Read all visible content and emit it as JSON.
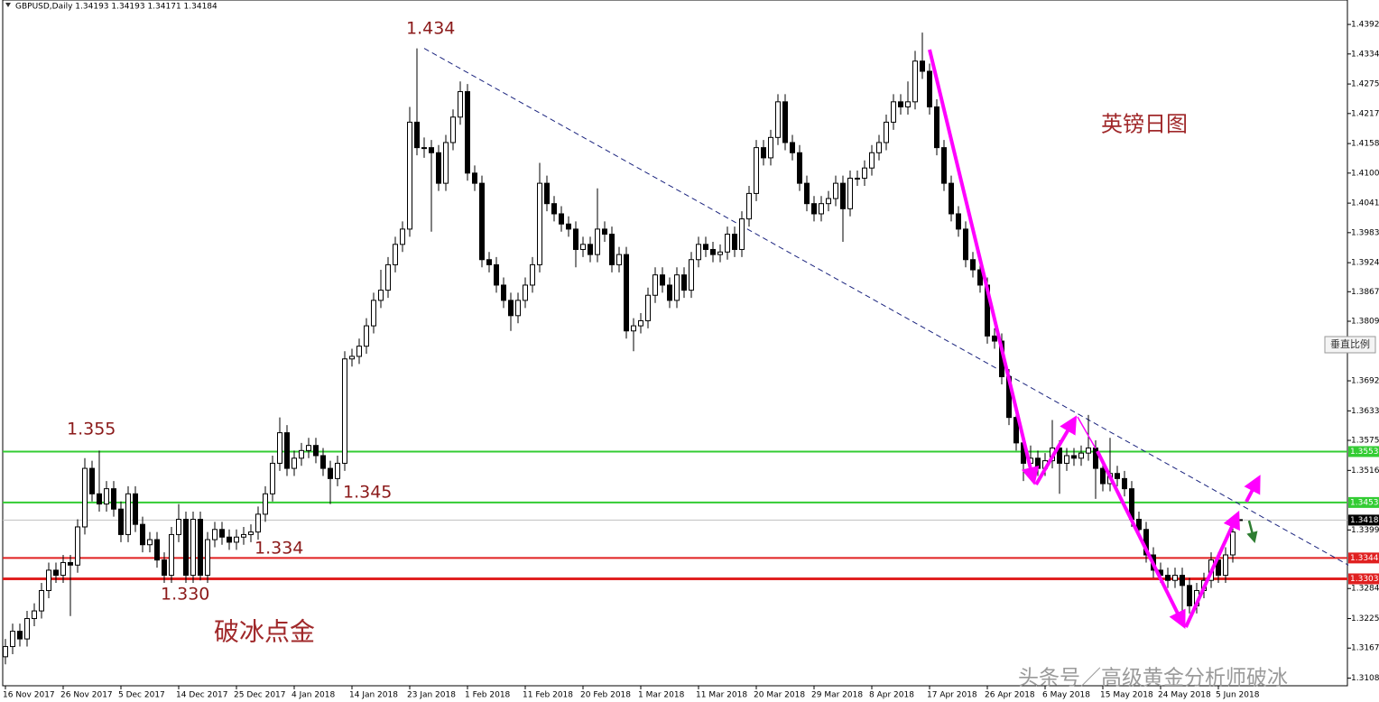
{
  "chart_data": {
    "type": "candlestick",
    "title": "GBPUSD,Daily  1.34193 1.34193 1.34171 1.34184",
    "categories": [
      "16 Nov 2017",
      null,
      null,
      null,
      null,
      null,
      null,
      null,
      "26 Nov 2017",
      null,
      null,
      null,
      null,
      null,
      null,
      null,
      "5 Dec 2017",
      null,
      null,
      null,
      null,
      null,
      null,
      null,
      "14 Dec 2017",
      null,
      null,
      null,
      null,
      null,
      null,
      null,
      "25 Dec 2017",
      null,
      null,
      null,
      null,
      null,
      null,
      null,
      "4 Jan 2018",
      null,
      null,
      null,
      null,
      null,
      null,
      null,
      "14 Jan 2018",
      null,
      null,
      null,
      null,
      null,
      null,
      null,
      "23 Jan 2018",
      null,
      null,
      null,
      null,
      null,
      null,
      null,
      "1 Feb 2018",
      null,
      null,
      null,
      null,
      null,
      null,
      null,
      "11 Feb 2018",
      null,
      null,
      null,
      null,
      null,
      null,
      null,
      "20 Feb 2018",
      null,
      null,
      null,
      null,
      null,
      null,
      null,
      "1 Mar 2018",
      null,
      null,
      null,
      null,
      null,
      null,
      null,
      "11 Mar 2018",
      null,
      null,
      null,
      null,
      null,
      null,
      null,
      "20 Mar 2018",
      null,
      null,
      null,
      null,
      null,
      null,
      null,
      "29 Mar 2018",
      null,
      null,
      null,
      null,
      null,
      null,
      null,
      "8 Apr 2018",
      null,
      null,
      null,
      null,
      null,
      null,
      null,
      "17 Apr 2018",
      null,
      null,
      null,
      null,
      null,
      null,
      null,
      "26 Apr 2018",
      null,
      null,
      null,
      null,
      null,
      null,
      null,
      "6 May 2018",
      null,
      null,
      null,
      null,
      null,
      null,
      null,
      "15 May 2018",
      null,
      null,
      null,
      null,
      null,
      null,
      null,
      "24 May 2018",
      null,
      null,
      null,
      null,
      null,
      null,
      null,
      "5 Jun 2018",
      null,
      null,
      null
    ],
    "ohlc": [
      [
        1.315,
        1.3185,
        1.3135,
        1.317
      ],
      [
        1.317,
        1.3215,
        1.3155,
        1.32
      ],
      [
        1.32,
        1.3215,
        1.317,
        1.3185
      ],
      [
        1.3185,
        1.324,
        1.317,
        1.3225
      ],
      [
        1.3225,
        1.3255,
        1.321,
        1.324
      ],
      [
        1.324,
        1.3295,
        1.3225,
        1.328
      ],
      [
        1.328,
        1.3335,
        1.3265,
        1.332
      ],
      [
        1.332,
        1.3335,
        1.3295,
        1.331
      ],
      [
        1.331,
        1.335,
        1.3295,
        1.3335
      ],
      [
        1.3335,
        1.335,
        1.323,
        1.333
      ],
      [
        1.333,
        1.342,
        1.3315,
        1.3405
      ],
      [
        1.3405,
        1.354,
        1.339,
        1.352
      ],
      [
        1.352,
        1.3535,
        1.3455,
        1.347
      ],
      [
        1.347,
        1.3555,
        1.3435,
        1.345
      ],
      [
        1.345,
        1.3495,
        1.3435,
        1.348
      ],
      [
        1.348,
        1.3495,
        1.3425,
        1.344
      ],
      [
        1.344,
        1.3455,
        1.3375,
        1.339
      ],
      [
        1.339,
        1.3485,
        1.3375,
        1.347
      ],
      [
        1.347,
        1.3485,
        1.3395,
        1.341
      ],
      [
        1.341,
        1.3425,
        1.3355,
        1.337
      ],
      [
        1.337,
        1.3395,
        1.3355,
        1.338
      ],
      [
        1.338,
        1.3395,
        1.3325,
        1.334
      ],
      [
        1.334,
        1.3355,
        1.3295,
        1.331
      ],
      [
        1.331,
        1.3405,
        1.3295,
        1.339
      ],
      [
        1.339,
        1.345,
        1.3375,
        1.342
      ],
      [
        1.342,
        1.3435,
        1.3295,
        1.331
      ],
      [
        1.331,
        1.3435,
        1.3295,
        1.342
      ],
      [
        1.342,
        1.3435,
        1.33,
        1.331
      ],
      [
        1.331,
        1.3395,
        1.3295,
        1.338
      ],
      [
        1.338,
        1.3415,
        1.3365,
        1.34
      ],
      [
        1.34,
        1.3415,
        1.337,
        1.3385
      ],
      [
        1.3385,
        1.34,
        1.336,
        1.3375
      ],
      [
        1.3375,
        1.34,
        1.336,
        1.3385
      ],
      [
        1.3385,
        1.3405,
        1.337,
        1.339
      ],
      [
        1.339,
        1.341,
        1.3375,
        1.3395
      ],
      [
        1.3395,
        1.3445,
        1.338,
        1.343
      ],
      [
        1.343,
        1.3485,
        1.3415,
        1.347
      ],
      [
        1.347,
        1.3545,
        1.3455,
        1.353
      ],
      [
        1.353,
        1.362,
        1.3515,
        1.359
      ],
      [
        1.359,
        1.3605,
        1.3505,
        1.352
      ],
      [
        1.352,
        1.3555,
        1.3505,
        1.354
      ],
      [
        1.354,
        1.357,
        1.3525,
        1.3555
      ],
      [
        1.3555,
        1.358,
        1.354,
        1.3565
      ],
      [
        1.3565,
        1.358,
        1.353,
        1.3545
      ],
      [
        1.3545,
        1.356,
        1.3505,
        1.352
      ],
      [
        1.352,
        1.3535,
        1.345,
        1.35
      ],
      [
        1.35,
        1.3545,
        1.3485,
        1.353
      ],
      [
        1.353,
        1.375,
        1.3515,
        1.3735
      ],
      [
        1.3735,
        1.3755,
        1.372,
        1.374
      ],
      [
        1.374,
        1.3775,
        1.3725,
        1.376
      ],
      [
        1.376,
        1.3815,
        1.3745,
        1.38
      ],
      [
        1.38,
        1.3865,
        1.3785,
        1.385
      ],
      [
        1.385,
        1.391,
        1.3835,
        1.387
      ],
      [
        1.387,
        1.3935,
        1.3855,
        1.392
      ],
      [
        1.392,
        1.3975,
        1.3905,
        1.396
      ],
      [
        1.396,
        1.4005,
        1.3945,
        1.399
      ],
      [
        1.399,
        1.423,
        1.3975,
        1.42
      ],
      [
        1.42,
        1.4345,
        1.4135,
        1.415
      ],
      [
        1.415,
        1.417,
        1.413,
        1.415
      ],
      [
        1.415,
        1.4165,
        1.3985,
        1.414
      ],
      [
        1.414,
        1.4155,
        1.4065,
        1.408
      ],
      [
        1.408,
        1.4175,
        1.4065,
        1.416
      ],
      [
        1.416,
        1.4225,
        1.4145,
        1.421
      ],
      [
        1.421,
        1.428,
        1.4195,
        1.426
      ],
      [
        1.426,
        1.4275,
        1.4085,
        1.41
      ],
      [
        1.41,
        1.4115,
        1.4065,
        1.408
      ],
      [
        1.408,
        1.4095,
        1.3915,
        1.393
      ],
      [
        1.393,
        1.3945,
        1.3905,
        1.392
      ],
      [
        1.392,
        1.3935,
        1.3865,
        1.388
      ],
      [
        1.388,
        1.3895,
        1.3835,
        1.385
      ],
      [
        1.385,
        1.3865,
        1.379,
        1.382
      ],
      [
        1.382,
        1.3865,
        1.3805,
        1.385
      ],
      [
        1.385,
        1.3895,
        1.3835,
        1.388
      ],
      [
        1.388,
        1.3935,
        1.3865,
        1.392
      ],
      [
        1.392,
        1.412,
        1.3905,
        1.408
      ],
      [
        1.408,
        1.4095,
        1.4025,
        1.404
      ],
      [
        1.404,
        1.4055,
        1.4005,
        1.402
      ],
      [
        1.402,
        1.4035,
        1.3985,
        1.4
      ],
      [
        1.4,
        1.4015,
        1.3975,
        1.399
      ],
      [
        1.399,
        1.4005,
        1.3915,
        1.395
      ],
      [
        1.395,
        1.3975,
        1.3935,
        1.396
      ],
      [
        1.396,
        1.3975,
        1.3925,
        1.394
      ],
      [
        1.394,
        1.407,
        1.3925,
        1.399
      ],
      [
        1.399,
        1.4005,
        1.3965,
        1.398
      ],
      [
        1.398,
        1.3995,
        1.3905,
        1.392
      ],
      [
        1.392,
        1.3955,
        1.3905,
        1.394
      ],
      [
        1.394,
        1.3955,
        1.3775,
        1.379
      ],
      [
        1.379,
        1.3815,
        1.375,
        1.38
      ],
      [
        1.38,
        1.3825,
        1.3785,
        1.381
      ],
      [
        1.381,
        1.3875,
        1.3795,
        1.386
      ],
      [
        1.386,
        1.3915,
        1.3845,
        1.39
      ],
      [
        1.39,
        1.3915,
        1.3865,
        1.388
      ],
      [
        1.388,
        1.3895,
        1.3835,
        1.385
      ],
      [
        1.385,
        1.3915,
        1.3835,
        1.39
      ],
      [
        1.39,
        1.3915,
        1.3855,
        1.387
      ],
      [
        1.387,
        1.3945,
        1.3855,
        1.393
      ],
      [
        1.393,
        1.3975,
        1.3915,
        1.396
      ],
      [
        1.396,
        1.3975,
        1.3935,
        1.395
      ],
      [
        1.395,
        1.3965,
        1.3925,
        1.394
      ],
      [
        1.394,
        1.396,
        1.3925,
        1.3945
      ],
      [
        1.3945,
        1.3995,
        1.393,
        1.398
      ],
      [
        1.398,
        1.3995,
        1.3935,
        1.395
      ],
      [
        1.395,
        1.4025,
        1.3935,
        1.401
      ],
      [
        1.401,
        1.4075,
        1.3995,
        1.406
      ],
      [
        1.406,
        1.4165,
        1.4045,
        1.415
      ],
      [
        1.415,
        1.4165,
        1.4115,
        1.413
      ],
      [
        1.413,
        1.4185,
        1.4115,
        1.417
      ],
      [
        1.417,
        1.4255,
        1.4155,
        1.424
      ],
      [
        1.424,
        1.4255,
        1.4145,
        1.416
      ],
      [
        1.416,
        1.4175,
        1.4125,
        1.414
      ],
      [
        1.414,
        1.4155,
        1.4065,
        1.408
      ],
      [
        1.408,
        1.4095,
        1.4025,
        1.404
      ],
      [
        1.404,
        1.4055,
        1.4005,
        1.402
      ],
      [
        1.402,
        1.4055,
        1.4005,
        1.404
      ],
      [
        1.404,
        1.4065,
        1.4025,
        1.405
      ],
      [
        1.405,
        1.4095,
        1.4035,
        1.408
      ],
      [
        1.408,
        1.4095,
        1.3965,
        1.403
      ],
      [
        1.403,
        1.4105,
        1.4015,
        1.409
      ],
      [
        1.409,
        1.4105,
        1.4075,
        1.409
      ],
      [
        1.409,
        1.4125,
        1.4075,
        1.411
      ],
      [
        1.411,
        1.4155,
        1.4095,
        1.414
      ],
      [
        1.414,
        1.4175,
        1.4125,
        1.416
      ],
      [
        1.416,
        1.4215,
        1.4145,
        1.42
      ],
      [
        1.42,
        1.4255,
        1.4185,
        1.424
      ],
      [
        1.424,
        1.4255,
        1.4215,
        1.423
      ],
      [
        1.423,
        1.428,
        1.4215,
        1.424
      ],
      [
        1.424,
        1.434,
        1.4225,
        1.432
      ],
      [
        1.432,
        1.4376,
        1.4285,
        1.43
      ],
      [
        1.43,
        1.4315,
        1.4215,
        1.423
      ],
      [
        1.423,
        1.4245,
        1.4135,
        1.415
      ],
      [
        1.415,
        1.4165,
        1.4065,
        1.408
      ],
      [
        1.408,
        1.4095,
        1.4005,
        1.402
      ],
      [
        1.402,
        1.4035,
        1.3975,
        1.399
      ],
      [
        1.399,
        1.4005,
        1.3915,
        1.393
      ],
      [
        1.393,
        1.3945,
        1.3895,
        1.391
      ],
      [
        1.391,
        1.3925,
        1.3865,
        1.388
      ],
      [
        1.388,
        1.3895,
        1.3765,
        1.378
      ],
      [
        1.378,
        1.3795,
        1.3755,
        1.377
      ],
      [
        1.377,
        1.3785,
        1.3685,
        1.37
      ],
      [
        1.37,
        1.3715,
        1.3605,
        1.362
      ],
      [
        1.362,
        1.3635,
        1.3555,
        1.357
      ],
      [
        1.357,
        1.3585,
        1.3495,
        1.353
      ],
      [
        1.353,
        1.3565,
        1.3515,
        1.354
      ],
      [
        1.354,
        1.3555,
        1.3505,
        1.352
      ],
      [
        1.352,
        1.355,
        1.3505,
        1.3535
      ],
      [
        1.3535,
        1.3615,
        1.352,
        1.356
      ],
      [
        1.356,
        1.3575,
        1.347,
        1.353
      ],
      [
        1.353,
        1.356,
        1.3515,
        1.3545
      ],
      [
        1.3545,
        1.356,
        1.3525,
        1.354
      ],
      [
        1.354,
        1.3565,
        1.3525,
        1.355
      ],
      [
        1.355,
        1.3625,
        1.3535,
        1.356
      ],
      [
        1.356,
        1.3575,
        1.346,
        1.352
      ],
      [
        1.352,
        1.3535,
        1.3475,
        1.349
      ],
      [
        1.349,
        1.358,
        1.3475,
        1.351
      ],
      [
        1.351,
        1.3525,
        1.3485,
        1.35
      ],
      [
        1.35,
        1.3515,
        1.3465,
        1.348
      ],
      [
        1.348,
        1.3495,
        1.3405,
        1.342
      ],
      [
        1.342,
        1.3435,
        1.3385,
        1.34
      ],
      [
        1.34,
        1.3415,
        1.3335,
        1.335
      ],
      [
        1.335,
        1.3365,
        1.3305,
        1.332
      ],
      [
        1.332,
        1.3335,
        1.3295,
        1.331
      ],
      [
        1.331,
        1.3325,
        1.3285,
        1.33
      ],
      [
        1.33,
        1.3325,
        1.3285,
        1.331
      ],
      [
        1.331,
        1.3325,
        1.321,
        1.329
      ],
      [
        1.329,
        1.3305,
        1.3235,
        1.325
      ],
      [
        1.325,
        1.3295,
        1.3235,
        1.328
      ],
      [
        1.328,
        1.3315,
        1.3265,
        1.33
      ],
      [
        1.33,
        1.3355,
        1.3285,
        1.334
      ],
      [
        1.334,
        1.3355,
        1.3295,
        1.331
      ],
      [
        1.331,
        1.3365,
        1.3295,
        1.335
      ],
      [
        1.335,
        1.3405,
        1.3335,
        1.3395
      ],
      [
        1.34193,
        1.34193,
        1.34171,
        1.34184
      ]
    ],
    "up_color": "#ffffff",
    "down_color": "#000000",
    "ylim": [
      1.3093,
      1.444
    ],
    "yticks": [
      {
        "value": 1.4392,
        "label": "1.43920"
      },
      {
        "value": 1.4334,
        "label": "1.43340"
      },
      {
        "value": 1.4275,
        "label": "1.42750"
      },
      {
        "value": 1.4217,
        "label": "1.42170"
      },
      {
        "value": 1.4158,
        "label": "1.41580"
      },
      {
        "value": 1.41,
        "label": "1.41000"
      },
      {
        "value": 1.4041,
        "label": "1.40410"
      },
      {
        "value": 1.3983,
        "label": "1.39830"
      },
      {
        "value": 1.3924,
        "label": "1.39240"
      },
      {
        "value": 1.3867,
        "label": "1.38670"
      },
      {
        "value": 1.3809,
        "label": "1.38090"
      },
      {
        "value": 1.3692,
        "label": "1.36920"
      },
      {
        "value": 1.3633,
        "label": "1.36330"
      },
      {
        "value": 1.3575,
        "label": "1.35750"
      },
      {
        "value": 1.3516,
        "label": "1.35160"
      },
      {
        "value": 1.3399,
        "label": "1.33990"
      },
      {
        "value": 1.3284,
        "label": "1.32840"
      },
      {
        "value": 1.3225,
        "label": "1.32250"
      },
      {
        "value": 1.3167,
        "label": "1.31670"
      },
      {
        "value": 1.3108,
        "label": "1.31080"
      }
    ],
    "trendline": {
      "from": [
        58,
        1.4345
      ],
      "to": [
        186,
        1.333
      ],
      "color": "#1a237e"
    },
    "levels": [
      {
        "value": 1.3553,
        "label": "1.35530",
        "color": "#33cc33"
      },
      {
        "value": 1.3453,
        "label": "1.34530",
        "color": "#33cc33"
      },
      {
        "value": 1.3344,
        "label": "1.33440",
        "color": "#e02020"
      },
      {
        "value": 1.3303,
        "label": "1.33030",
        "color": "#e02020"
      }
    ],
    "current_price": {
      "value": 1.34184,
      "label": "1.34184",
      "color": "#c0c0c0"
    },
    "annotations": [
      "1.434",
      "1.355",
      "1.345",
      "1.334",
      "1.330",
      "英镑日图",
      "破冰点金"
    ]
  },
  "watermark": "头条号／高级黄金分析师破冰",
  "button": "垂直比例"
}
